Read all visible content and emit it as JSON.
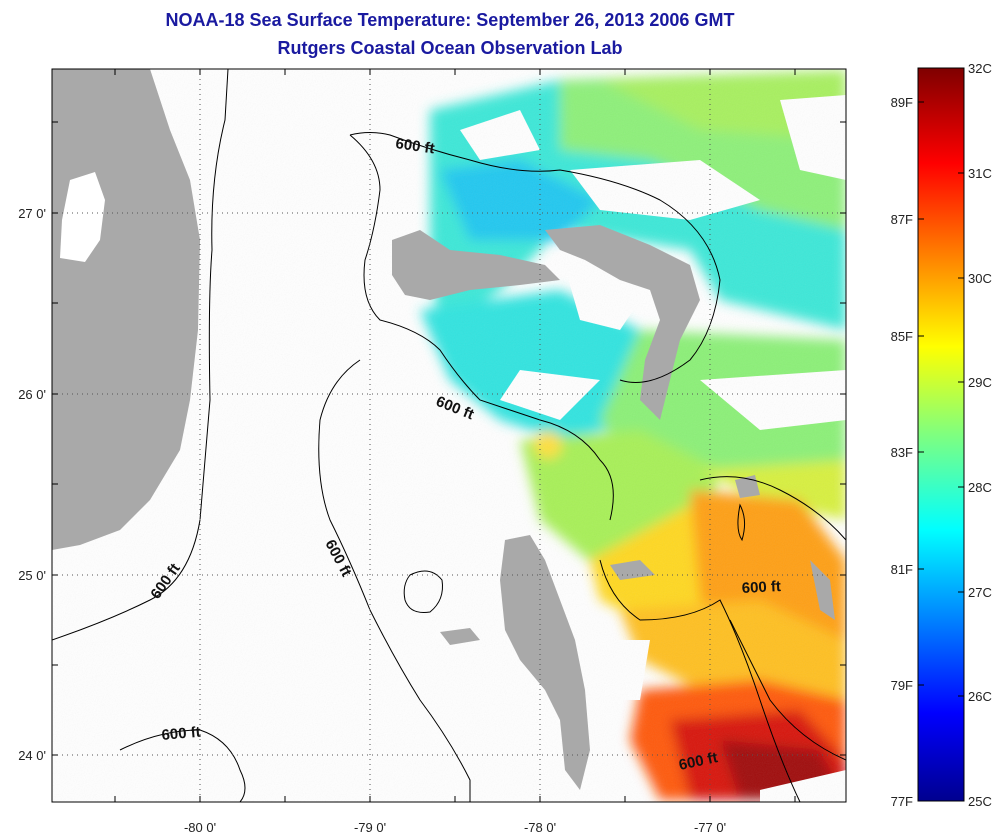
{
  "title": "NOAA-18 Sea Surface Temperature:  September 26, 2013 2006 GMT",
  "subtitle": "Rutgers Coastal Ocean Observation Lab",
  "lon_ticks": [
    "-80 0'",
    "-79 0'",
    "-78 0'",
    "-77 0'"
  ],
  "lat_ticks": [
    "27 0'",
    "26 0'",
    "25 0'",
    "24 0'"
  ],
  "contour_labels": [
    "600 ft",
    "600 ft",
    "600 ft",
    "600 ft",
    "600 ft",
    "600 ft"
  ],
  "colorbar": {
    "celsius": [
      "32C",
      "31C",
      "30C",
      "29C",
      "28C",
      "27C",
      "26C",
      "25C"
    ],
    "fahrenheit": [
      "89F",
      "87F",
      "85F",
      "83F",
      "81F",
      "79F",
      "77F"
    ]
  },
  "colors": {
    "land": "#a9a9a9",
    "title": "#1a1aa0"
  }
}
